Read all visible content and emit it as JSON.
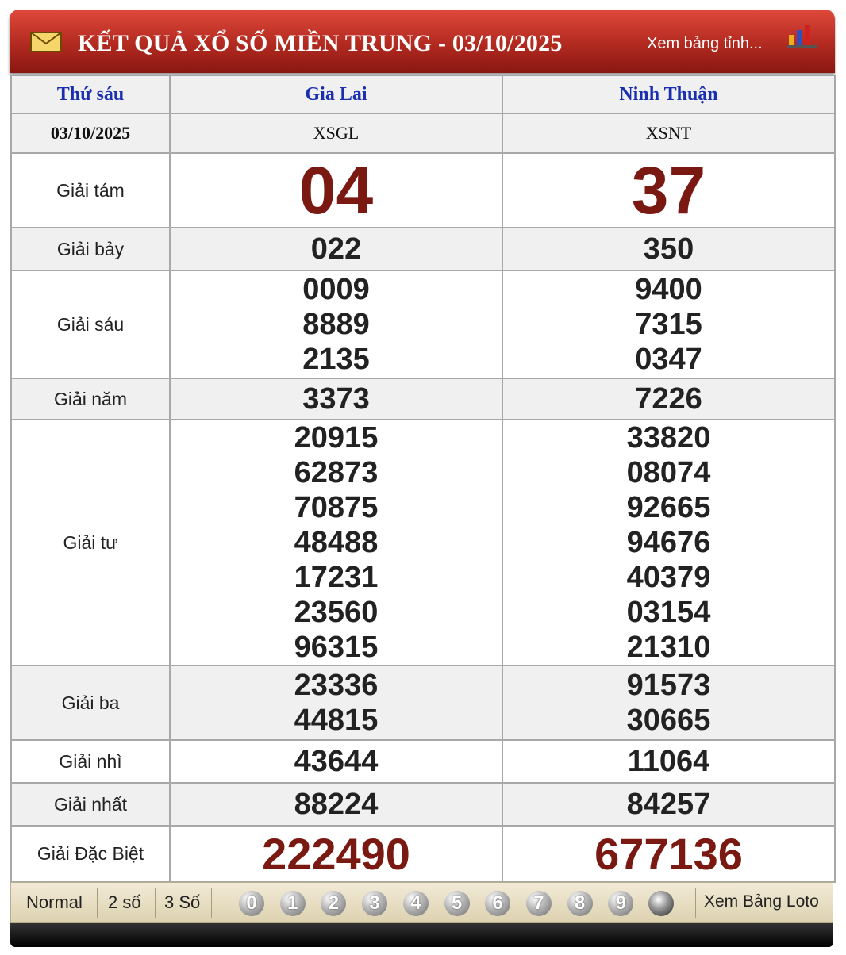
{
  "header": {
    "title": "KẾT QUẢ XỔ SỐ MIỀN TRUNG - 03/10/2025",
    "link": "Xem bảng tỉnh..."
  },
  "table": {
    "day": "Thứ sáu",
    "date": "03/10/2025",
    "provinces": [
      {
        "name": "Gia Lai",
        "code": "XSGL"
      },
      {
        "name": "Ninh Thuận",
        "code": "XSNT"
      }
    ],
    "prizes": [
      {
        "label": "Giải tám",
        "results": [
          [
            "04"
          ],
          [
            "37"
          ]
        ]
      },
      {
        "label": "Giải bảy",
        "results": [
          [
            "022"
          ],
          [
            "350"
          ]
        ]
      },
      {
        "label": "Giải sáu",
        "results": [
          [
            "0009",
            "8889",
            "2135"
          ],
          [
            "9400",
            "7315",
            "0347"
          ]
        ]
      },
      {
        "label": "Giải năm",
        "results": [
          [
            "3373"
          ],
          [
            "7226"
          ]
        ]
      },
      {
        "label": "Giải tư",
        "results": [
          [
            "20915",
            "62873",
            "70875",
            "48488",
            "17231",
            "23560",
            "96315"
          ],
          [
            "33820",
            "08074",
            "92665",
            "94676",
            "40379",
            "03154",
            "21310"
          ]
        ]
      },
      {
        "label": "Giải ba",
        "results": [
          [
            "23336",
            "44815"
          ],
          [
            "91573",
            "30665"
          ]
        ]
      },
      {
        "label": "Giải nhì",
        "results": [
          [
            "43644"
          ],
          [
            "11064"
          ]
        ]
      },
      {
        "label": "Giải nhất",
        "results": [
          [
            "88224"
          ],
          [
            "84257"
          ]
        ]
      },
      {
        "label": "Giải Đặc Biệt",
        "results": [
          [
            "222490"
          ],
          [
            "677136"
          ]
        ]
      }
    ]
  },
  "footer": {
    "modes": [
      "Normal",
      "2 số",
      "3 Số"
    ],
    "digits": [
      "0",
      "1",
      "2",
      "3",
      "4",
      "5",
      "6",
      "7",
      "8",
      "9"
    ],
    "link": "Xem Bảng Loto"
  }
}
